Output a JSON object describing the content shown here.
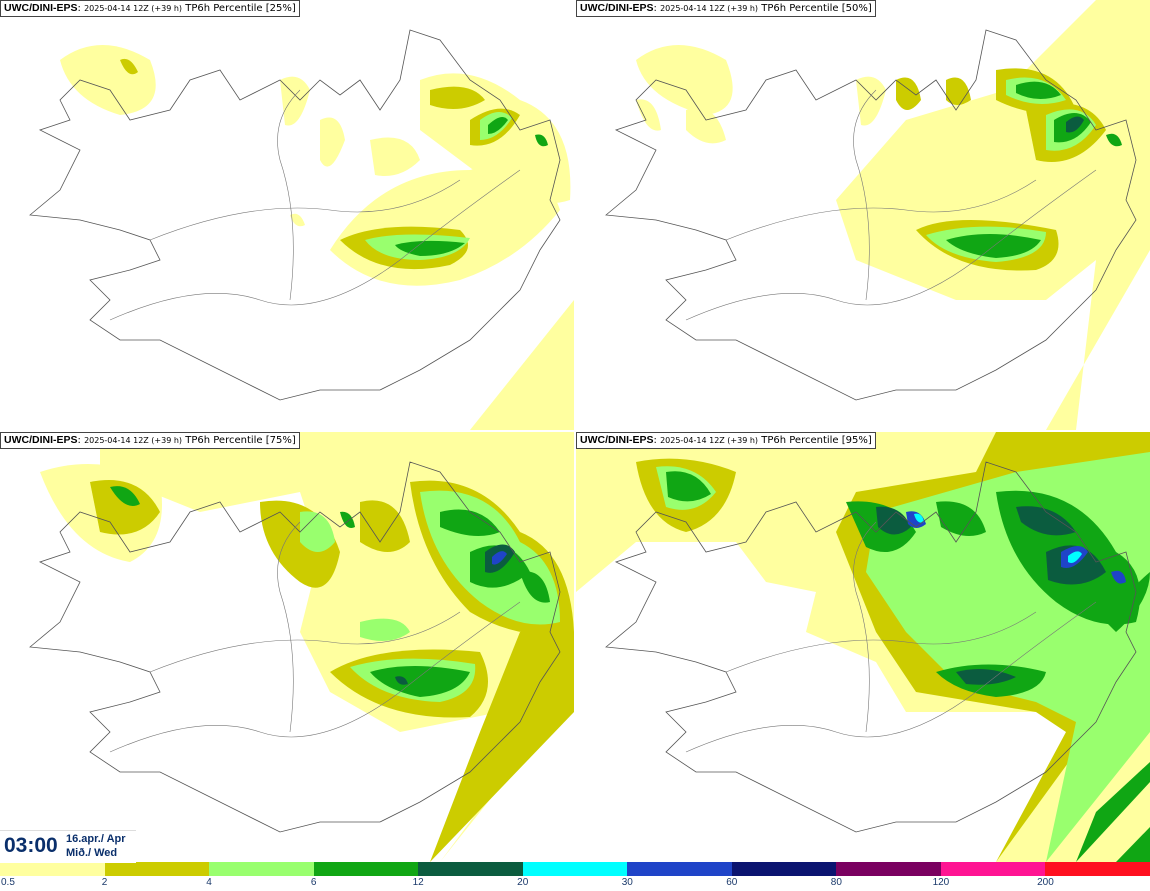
{
  "panels": [
    {
      "model": "UWC/DINI-EPS",
      "run": "2025-04-14 12Z (+39 h)",
      "product": "TP6h Percentile [25%]"
    },
    {
      "model": "UWC/DINI-EPS",
      "run": "2025-04-14 12Z (+39 h)",
      "product": "TP6h Percentile [50%]"
    },
    {
      "model": "UWC/DINI-EPS",
      "run": "2025-04-14 12Z (+39 h)",
      "product": "TP6h Percentile [75%]"
    },
    {
      "model": "UWC/DINI-EPS",
      "run": "2025-04-14 12Z (+39 h)",
      "product": "TP6h Percentile [95%]"
    }
  ],
  "valid_time": {
    "hour": "03:00",
    "date_line1": "16.apr./ Apr",
    "date_line2": "Mið./ Wed"
  },
  "legend": {
    "labels": [
      "0.5",
      "2",
      "4",
      "6",
      "12",
      "20",
      "30",
      "60",
      "80",
      "120",
      "200"
    ],
    "colors": [
      "#ffff9f",
      "#cccc00",
      "#99ff6e",
      "#10a614",
      "#0b5c3f",
      "#00ffff",
      "#1f44c8",
      "#0b1470",
      "#7a0060",
      "#ff1493",
      "#ff1020"
    ]
  }
}
